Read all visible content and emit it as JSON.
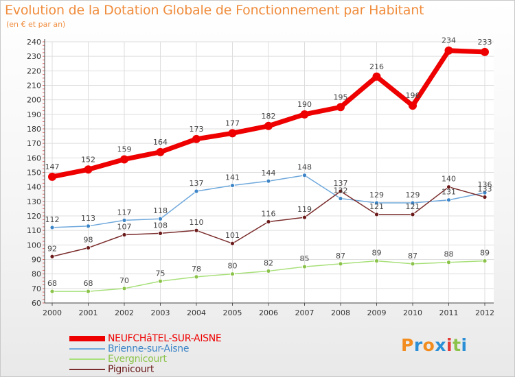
{
  "title": "Evolution de la Dotation Globale de Fonctionnement par Habitant",
  "subtitle": "(en € et par an)",
  "logo": {
    "text": "Proxiti",
    "letter_colors": [
      "#f28c1e",
      "#2b8fd6",
      "#f28c1e",
      "#2b8fd6",
      "#e53935",
      "#8bc34a",
      "#2b8fd6"
    ]
  },
  "chart_data": {
    "type": "line",
    "title": "Evolution de la Dotation Globale de Fonctionnement par Habitant",
    "subtitle": "(en € et par an)",
    "x": [
      "2000",
      "2001",
      "2002",
      "2003",
      "2004",
      "2005",
      "2006",
      "2007",
      "2008",
      "2009",
      "2010",
      "2011",
      "2012"
    ],
    "ylim": [
      60,
      240
    ],
    "yticks": [
      "60",
      "70",
      "80",
      "90",
      "100",
      "110",
      "120",
      "130",
      "140",
      "150",
      "160",
      "170",
      "180",
      "190",
      "200",
      "210",
      "220",
      "230",
      "240"
    ],
    "grid": true,
    "legend_position": "bottom-left",
    "series": [
      {
        "name": "NEUFCHâTEL-SUR-AISNE",
        "color": "#ee0000",
        "marker_color": "#ee0000",
        "thick": true,
        "values": [
          147,
          152,
          159,
          164,
          173,
          177,
          182,
          190,
          195,
          216,
          196,
          234,
          233
        ],
        "labels": [
          "147",
          "152",
          "159",
          "164",
          "173",
          "177",
          "182",
          "190",
          "195",
          "216",
          "196",
          "234",
          "233"
        ]
      },
      {
        "name": "Brienne-sur-Aisne",
        "color": "#6fa8dc",
        "marker_color": "#3d85c6",
        "thick": false,
        "values": [
          112,
          113,
          117,
          118,
          137,
          141,
          144,
          148,
          132,
          129,
          129,
          131,
          136
        ],
        "labels": [
          "112",
          "113",
          "117",
          "118",
          "137",
          "141",
          "144",
          "148",
          "132",
          "129",
          "129",
          "131",
          "136"
        ]
      },
      {
        "name": "Evergnicourt",
        "color": "#a8e07a",
        "marker_color": "#8bc34a",
        "thick": false,
        "values": [
          68,
          68,
          70,
          75,
          78,
          80,
          82,
          85,
          87,
          89,
          87,
          88,
          89
        ],
        "labels": [
          "68",
          "68",
          "70",
          "75",
          "78",
          "80",
          "82",
          "85",
          "87",
          "89",
          "87",
          "88",
          "89"
        ]
      },
      {
        "name": "Pignicourt",
        "color": "#7b2c2c",
        "marker_color": "#6b1a1a",
        "thick": false,
        "values": [
          92,
          98,
          107,
          108,
          110,
          101,
          116,
          119,
          137,
          121,
          121,
          140,
          133
        ],
        "labels": [
          "92",
          "98",
          "107",
          "108",
          "110",
          "101",
          "116",
          "119",
          "137",
          "121",
          "121",
          "140",
          "133"
        ]
      }
    ]
  }
}
